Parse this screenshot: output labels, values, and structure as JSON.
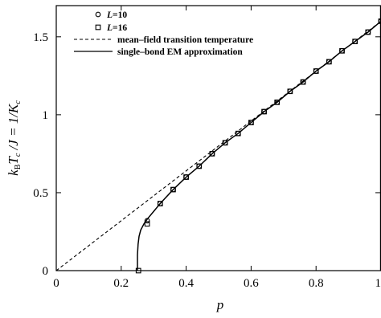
{
  "chart_data": {
    "type": "line",
    "title": "",
    "xlabel": "p",
    "ylabel": "k_B T_c / J = 1/K_c",
    "ylabel_parts": {
      "k": "k",
      "B": "B",
      "T": "T",
      "c1": "c",
      "mid": " /J = 1/K",
      "c2": "c"
    },
    "xlim": [
      0,
      1
    ],
    "ylim": [
      0,
      1.7
    ],
    "x_ticks": [
      "0",
      "0.2",
      "0.4",
      "0.6",
      "0.8",
      "1"
    ],
    "y_ticks": [
      "0",
      "0.5",
      "1",
      "1.5"
    ],
    "x_tick_values": [
      0,
      0.2,
      0.4,
      0.6,
      0.8,
      1
    ],
    "y_tick_values": [
      0,
      0.5,
      1,
      1.5
    ],
    "legend_position": "top-left",
    "grid": false,
    "legend": [
      {
        "prefix": "L",
        "text": "=10",
        "marker": "circle"
      },
      {
        "prefix": "L",
        "text": "=16",
        "marker": "square"
      },
      {
        "text": "mean–field transition temperature",
        "line": "dashed"
      },
      {
        "text": "single–bond EM approximation",
        "line": "solid"
      }
    ],
    "series": [
      {
        "name": "L=10",
        "marker": "circle",
        "x": [
          0.28,
          0.32,
          0.36,
          0.4,
          0.44,
          0.48,
          0.52,
          0.56,
          0.6,
          0.64,
          0.68,
          0.72,
          0.76,
          0.8,
          0.84,
          0.88,
          0.92,
          0.96,
          1.0
        ],
        "y": [
          0.32,
          0.43,
          0.52,
          0.6,
          0.67,
          0.75,
          0.82,
          0.88,
          0.95,
          1.02,
          1.08,
          1.15,
          1.21,
          1.28,
          1.34,
          1.41,
          1.47,
          1.53,
          1.6
        ]
      },
      {
        "name": "L=16",
        "marker": "square",
        "x": [
          0.253,
          0.28,
          0.32,
          0.36,
          0.4,
          0.44,
          0.48,
          0.52,
          0.56,
          0.6,
          0.64,
          0.68,
          0.72,
          0.76,
          0.8,
          0.84,
          0.88,
          0.92,
          0.96,
          1.0
        ],
        "y": [
          0.0,
          0.3,
          0.43,
          0.52,
          0.6,
          0.67,
          0.75,
          0.82,
          0.88,
          0.95,
          1.02,
          1.08,
          1.15,
          1.21,
          1.28,
          1.34,
          1.41,
          1.47,
          1.53,
          1.6
        ]
      },
      {
        "name": "mean–field transition temperature",
        "style": "dashed",
        "x": [
          0,
          1
        ],
        "y": [
          0,
          1.6
        ]
      },
      {
        "name": "single–bond EM approximation",
        "style": "solid",
        "x": [
          0.25,
          0.25,
          0.252,
          0.255,
          0.26,
          0.27,
          0.28,
          0.3,
          0.32,
          0.36,
          0.4,
          0.44,
          0.48,
          0.52,
          0.56,
          0.6,
          0.64,
          0.68,
          0.72,
          0.76,
          0.8,
          0.84,
          0.88,
          0.92,
          0.96,
          1.0
        ],
        "y": [
          0.0,
          0.1,
          0.17,
          0.22,
          0.26,
          0.3,
          0.33,
          0.38,
          0.43,
          0.52,
          0.6,
          0.67,
          0.75,
          0.82,
          0.88,
          0.95,
          1.02,
          1.08,
          1.15,
          1.21,
          1.28,
          1.34,
          1.41,
          1.47,
          1.53,
          1.6
        ]
      }
    ]
  }
}
